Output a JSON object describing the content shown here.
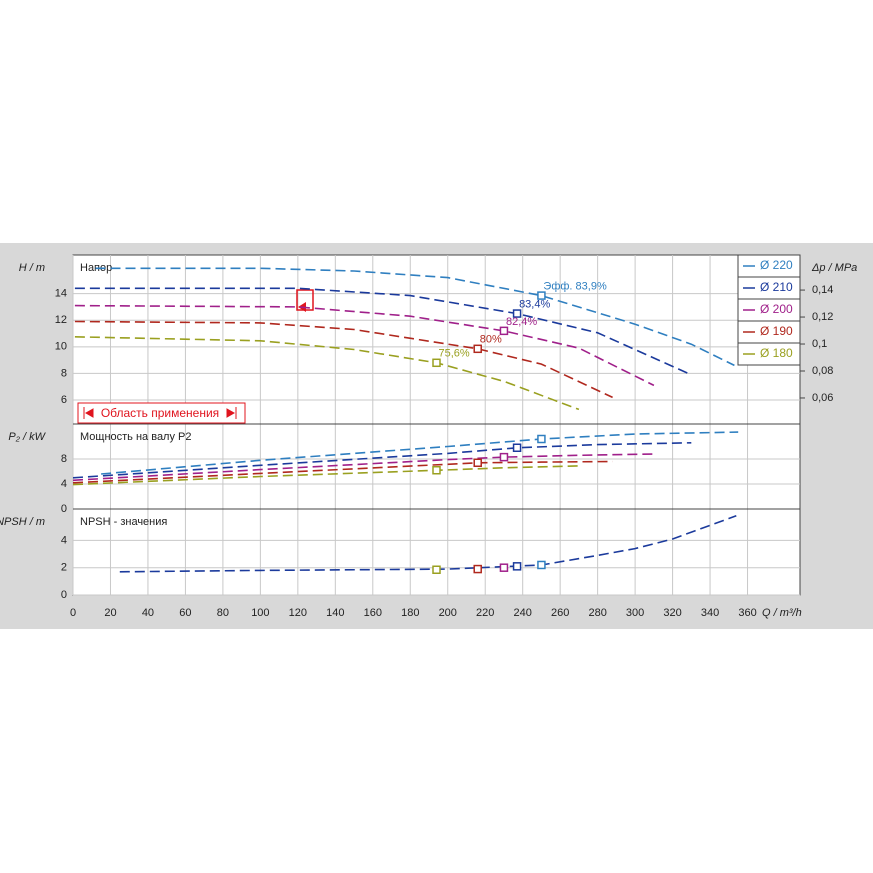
{
  "chart_data": {
    "type": "line",
    "x_label": "Q / m³/h",
    "xlim": [
      0,
      388
    ],
    "xticks": [
      0,
      20,
      40,
      60,
      80,
      100,
      120,
      140,
      160,
      180,
      200,
      220,
      240,
      260,
      280,
      300,
      320,
      340,
      360
    ],
    "legend": "upper right",
    "grid": true,
    "range_label": "Область применения",
    "panels": [
      {
        "title": "Напор",
        "y_label": "H / m",
        "y2_label": "Δp / MPa",
        "ylim": [
          4.2,
          16.9
        ],
        "yticks": [
          6,
          8,
          10,
          12,
          14
        ],
        "y2lim": [
          0.0407,
          0.166
        ],
        "y2ticks": [
          {
            "value": 0.06,
            "label": "0,06"
          },
          {
            "value": 0.08,
            "label": "0,08"
          },
          {
            "value": 0.1,
            "label": "0,1"
          },
          {
            "value": 0.12,
            "label": "0,12"
          },
          {
            "value": 0.14,
            "label": "0,14"
          }
        ]
      },
      {
        "title": "Мощность на валу P2",
        "y_label": "P₂ / kW",
        "ylim": [
          0,
          13.6
        ],
        "yticks": [
          0,
          4,
          8
        ]
      },
      {
        "title": "NPSH - значения",
        "y_label": "NPSH / m",
        "ylim": [
          0,
          6.3
        ],
        "yticks": [
          0,
          2,
          4
        ]
      }
    ],
    "series": [
      {
        "name": "Ø 220",
        "color": "#2f7fc0",
        "x": [
          12,
          100,
          150,
          200,
          250,
          300,
          330,
          353
        ],
        "head": [
          15.9,
          15.9,
          15.7,
          15.2,
          13.85,
          11.7,
          10.2,
          8.6
        ],
        "power_x": [
          15,
          100,
          200,
          250,
          300,
          355
        ],
        "power": [
          5.6,
          7.8,
          10.0,
          11.2,
          12.0,
          12.3
        ],
        "bep_x": 250,
        "bep_head": 13.85,
        "bep_power": 11.2,
        "bep_npsh": 2.2,
        "efficiency_label": "Эфф.  83,9%"
      },
      {
        "name": "Ø 210",
        "color": "#1b3a9c",
        "x": [
          1,
          120,
          180,
          237,
          280,
          330
        ],
        "head": [
          14.4,
          14.4,
          13.85,
          12.5,
          11.05,
          7.9
        ],
        "power_x": [
          0,
          100,
          200,
          237,
          280,
          330
        ],
        "power": [
          5.0,
          7.0,
          8.9,
          9.8,
          10.3,
          10.6
        ],
        "bep_x": 237,
        "bep_head": 12.5,
        "bep_power": 9.8,
        "bep_npsh": 2.1,
        "efficiency_label": "83,4%"
      },
      {
        "name": "Ø 200",
        "color": "#a0208a",
        "x": [
          1,
          120,
          180,
          230,
          270,
          310
        ],
        "head": [
          13.1,
          13.0,
          12.3,
          11.2,
          9.9,
          7.1
        ],
        "power_x": [
          0,
          100,
          200,
          230,
          270,
          310
        ],
        "power": [
          4.6,
          6.3,
          7.9,
          8.3,
          8.6,
          8.8
        ],
        "bep_x": 230,
        "bep_head": 11.2,
        "bep_power": 8.3,
        "bep_npsh": 2.0,
        "efficiency_label": "82,4%"
      },
      {
        "name": "Ø 190",
        "color": "#b0281e",
        "x": [
          1,
          100,
          150,
          216,
          250,
          288
        ],
        "head": [
          11.9,
          11.8,
          11.3,
          9.85,
          8.7,
          6.2
        ],
        "power_x": [
          0,
          100,
          216,
          250,
          288
        ],
        "power": [
          4.2,
          5.7,
          7.4,
          7.5,
          7.6
        ],
        "bep_x": 216,
        "bep_head": 9.85,
        "bep_power": 7.4,
        "bep_npsh": 1.9,
        "efficiency_label": "80%"
      },
      {
        "name": "Ø 180",
        "color": "#9aa020",
        "x": [
          1,
          100,
          150,
          194,
          230,
          270
        ],
        "head": [
          10.75,
          10.45,
          9.8,
          8.8,
          7.4,
          5.3
        ],
        "power_x": [
          0,
          100,
          194,
          230,
          270
        ],
        "power": [
          3.9,
          5.2,
          6.2,
          6.6,
          6.9
        ],
        "bep_x": 194,
        "bep_head": 8.8,
        "bep_power": 6.2,
        "bep_npsh": 1.85,
        "efficiency_label": "75,6%"
      }
    ],
    "npsh_x": [
      25,
      100,
      200,
      250,
      280,
      300,
      320,
      354
    ],
    "npsh": [
      1.7,
      1.8,
      1.9,
      2.2,
      2.9,
      3.4,
      4.1,
      5.8
    ]
  }
}
